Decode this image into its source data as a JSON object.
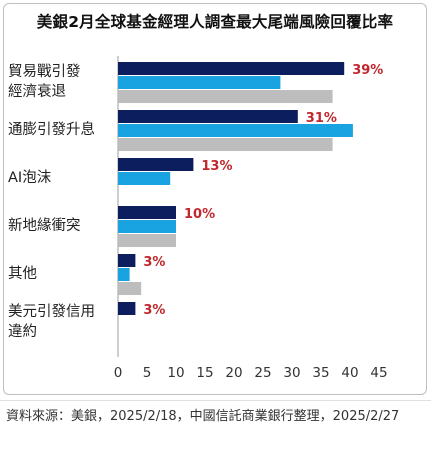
{
  "chart_data": {
    "type": "bar",
    "orientation": "horizontal",
    "title": "美銀2月全球基金經理人調查最大尾端風險回覆比率",
    "categories": [
      [
        "貿易戰引發",
        "經濟衰退"
      ],
      [
        "通膨引發升息"
      ],
      [
        "AI泡沫"
      ],
      [
        "新地緣衝突"
      ],
      [
        "其他"
      ],
      [
        "美元引發信用",
        "違約"
      ]
    ],
    "series": [
      {
        "color": "#0d1e5e",
        "values": [
          39,
          31,
          13,
          10,
          3,
          3
        ]
      },
      {
        "color": "#19a3e0",
        "values": [
          28,
          40.5,
          9,
          10,
          2,
          null
        ]
      },
      {
        "color": "#bdbdbd",
        "values": [
          37,
          37,
          null,
          10,
          4,
          null
        ]
      }
    ],
    "data_labels": [
      "39%",
      "31%",
      "13%",
      "10%",
      "3%",
      "3%"
    ],
    "data_label_color": "#c0282d",
    "xlim": [
      0,
      45
    ],
    "xticks": [
      0,
      5,
      10,
      15,
      20,
      25,
      30,
      35,
      40,
      45
    ],
    "grid": false
  },
  "source": "資料來源：美銀，2025/2/18，中國信託商業銀行整理，2025/2/27"
}
